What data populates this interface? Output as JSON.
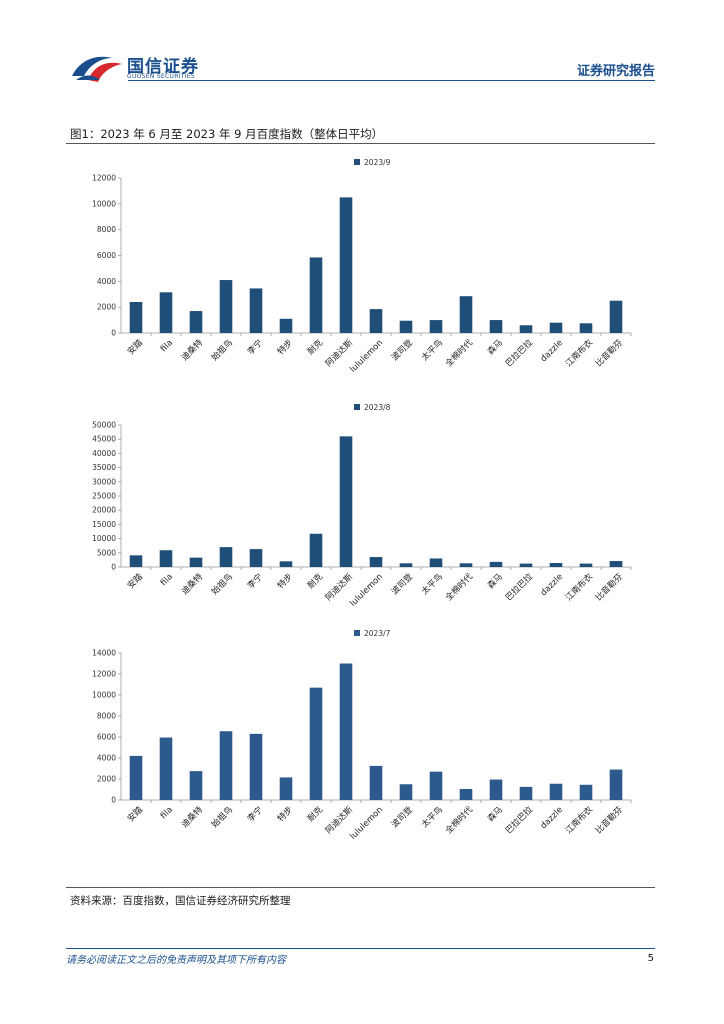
{
  "header": {
    "logo_cn": "国信证券",
    "logo_en": "GUOSEN SECURITIES",
    "right_title": "证券研究报告"
  },
  "figure": {
    "title": "图1：2023 年 6 月至 2023 年 9 月百度指数（整体日平均）",
    "source": "资料来源：百度指数，国信证券经济研究所整理"
  },
  "footer": {
    "disclaimer": "请务必阅读正文之后的免责声明及其项下所有内容",
    "page": "5"
  },
  "colors": {
    "brand": "#1a4e8c",
    "bar_dark": "#1f4e79",
    "bar_light": "#2d5a8c"
  },
  "chart_data": [
    {
      "type": "bar",
      "categories": [
        "安踏",
        "fila",
        "迪桑特",
        "始祖鸟",
        "李宁",
        "特步",
        "耐克",
        "阿迪达斯",
        "lululemon",
        "波司登",
        "太平鸟",
        "全棉时代",
        "森马",
        "巴拉巴拉",
        "dazzle",
        "江南布衣",
        "比音勒芬"
      ],
      "series": [
        {
          "name": "2023/9",
          "values": [
            2400,
            3150,
            1700,
            4100,
            3450,
            1100,
            5850,
            10500,
            1850,
            950,
            1000,
            2850,
            1000,
            600,
            800,
            750,
            2500
          ]
        }
      ],
      "ylim": [
        0,
        12000
      ],
      "yticks": [
        0,
        2000,
        4000,
        6000,
        8000,
        10000,
        12000
      ],
      "legend": "top-center",
      "color": "#1f4e79"
    },
    {
      "type": "bar",
      "categories": [
        "安踏",
        "fila",
        "迪桑特",
        "始祖鸟",
        "李宁",
        "特步",
        "耐克",
        "阿迪达斯",
        "lululemon",
        "波司登",
        "太平鸟",
        "全棉时代",
        "森马",
        "巴拉巴拉",
        "dazzle",
        "江南布衣",
        "比音勒芬"
      ],
      "series": [
        {
          "name": "2023/8",
          "values": [
            4100,
            5900,
            3300,
            7000,
            6300,
            2000,
            11700,
            46000,
            3500,
            1300,
            3000,
            1300,
            1800,
            1200,
            1400,
            1200,
            2100
          ]
        }
      ],
      "ylim": [
        0,
        50000
      ],
      "yticks": [
        0,
        5000,
        10000,
        15000,
        20000,
        25000,
        30000,
        35000,
        40000,
        45000,
        50000
      ],
      "legend": "top-center",
      "color": "#1f4e79"
    },
    {
      "type": "bar",
      "categories": [
        "安踏",
        "fila",
        "迪桑特",
        "始祖鸟",
        "李宁",
        "特步",
        "耐克",
        "阿迪达斯",
        "lululemon",
        "波司登",
        "太平鸟",
        "全棉时代",
        "森马",
        "巴拉巴拉",
        "dazzle",
        "江南布衣",
        "比音勒芬"
      ],
      "series": [
        {
          "name": "2023/7",
          "values": [
            4200,
            5950,
            2750,
            6550,
            6300,
            2150,
            10700,
            13000,
            3250,
            1500,
            2700,
            1050,
            1950,
            1250,
            1550,
            1450,
            2900
          ]
        }
      ],
      "ylim": [
        0,
        14000
      ],
      "yticks": [
        0,
        2000,
        4000,
        6000,
        8000,
        10000,
        12000,
        14000
      ],
      "legend": "top-center",
      "color": "#2d5a8c"
    }
  ]
}
